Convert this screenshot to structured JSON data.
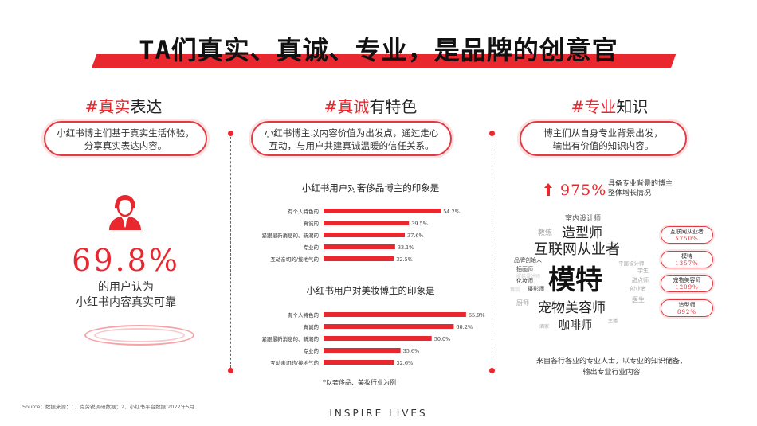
{
  "page": {
    "title": "TA们真实、真诚、专业，是品牌的创意官",
    "footer_source": "Source：数据来源：1、克劳锐调研数据；2、小红书平台数据 2022年5月",
    "footer_brand": "INSPIRE LIVES"
  },
  "col1": {
    "heading_prefix": "#真实",
    "heading_suffix": "表达",
    "pill_line1": "小红书博主们基于真实生活体验，",
    "pill_line2": "分享真实表达内容。",
    "percent": "69.8%",
    "caption_line1": "的用户认为",
    "caption_line2": "小红书内容真实可靠"
  },
  "col2": {
    "heading_prefix": "#真诚",
    "heading_suffix": "有特色",
    "pill_line1": "小红书博主以内容价值为出发点，通过走心",
    "pill_line2": "互动，与用户共建真诚温暖的信任关系。",
    "footnote": "*以奢侈品、美妆行业为例"
  },
  "col3": {
    "heading_prefix": "#专业",
    "heading_suffix": "知识",
    "pill_line1": "博主们从自身专业背景出发，",
    "pill_line2": "输出有价值的知识内容。",
    "growth_value": "975%",
    "growth_label_line1": "具备专业背景的博主",
    "growth_label_line2": "整体增长情况",
    "bottom_line1": "来自各行各业的专业人士，以专业的知识储备，",
    "bottom_line2": "输出专业行业内容",
    "badges": [
      {
        "label": "互联网从业者",
        "value": "5750%"
      },
      {
        "label": "模特",
        "value": "1357%"
      },
      {
        "label": "宠物美容师",
        "value": "1209%"
      },
      {
        "label": "造型师",
        "value": "892%"
      }
    ],
    "word_cloud": {
      "w1": "室内设计师",
      "w2": "教练",
      "w3": "造型师",
      "w4": "互联网从业者",
      "w5": "品牌创始人",
      "w6": "插画师",
      "w7": "模特",
      "w8": "平面设计师",
      "w9": "学生",
      "w10": "化妆师",
      "w11": "摄影师",
      "w12": "服装设计师",
      "w13": "舞蹈",
      "w14": "甜点师",
      "w15": "创业者",
      "w16": "宠物美容师",
      "w17": "厨师",
      "w18": "医生",
      "w19": "咖啡师",
      "w20": "酒家",
      "w21": "主播"
    }
  },
  "chart_data": [
    {
      "type": "bar",
      "title": "小红书用户对奢侈品博主的印象是",
      "categories": [
        "有个人特色的",
        "真诚的",
        "紧跟最新消息的、新潮的",
        "专业的",
        "互动亲切的/接地气的"
      ],
      "values": [
        54.2,
        39.5,
        37.6,
        33.1,
        32.5
      ],
      "value_labels": [
        "54.2%",
        "39.5%",
        "37.6%",
        "33.1%",
        "32.5%"
      ],
      "xlim": [
        0,
        70
      ],
      "color": "#e8272e"
    },
    {
      "type": "bar",
      "title": "小红书用户对美妆博主的印象是",
      "categories": [
        "有个人特色的",
        "真诚的",
        "紧跟最新消息的、新潮的",
        "专业的",
        "互动亲切的/接地气的"
      ],
      "values": [
        65.9,
        60.2,
        50.0,
        35.6,
        32.6
      ],
      "value_labels": [
        "65.9%",
        "60.2%",
        "50.0%",
        "35.6%",
        "32.6%"
      ],
      "xlim": [
        0,
        70
      ],
      "color": "#e8272e"
    }
  ]
}
